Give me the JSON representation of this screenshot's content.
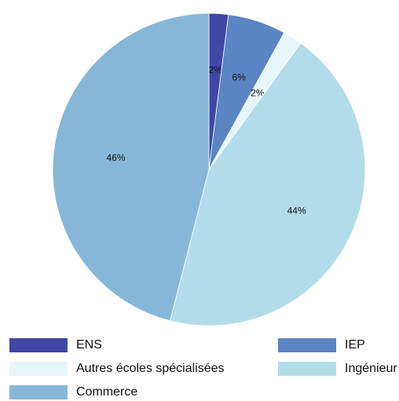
{
  "chart_data": {
    "type": "pie",
    "slices": [
      {
        "label": "ENS",
        "value": 2,
        "display": "2%",
        "color": "#3f46a6"
      },
      {
        "label": "IEP",
        "value": 6,
        "display": "6%",
        "color": "#5b84c2"
      },
      {
        "label": "Autres écoles spécialisées",
        "value": 2,
        "display": "2%",
        "color": "#e6f5fa"
      },
      {
        "label": "Ingénieur",
        "value": 44,
        "display": "44%",
        "color": "#b3dcea"
      },
      {
        "label": "Commerce",
        "value": 46,
        "display": "46%",
        "color": "#86b7d8"
      }
    ],
    "start_angle": "12 o'clock",
    "direction": "clockwise",
    "legend_position": "bottom"
  }
}
